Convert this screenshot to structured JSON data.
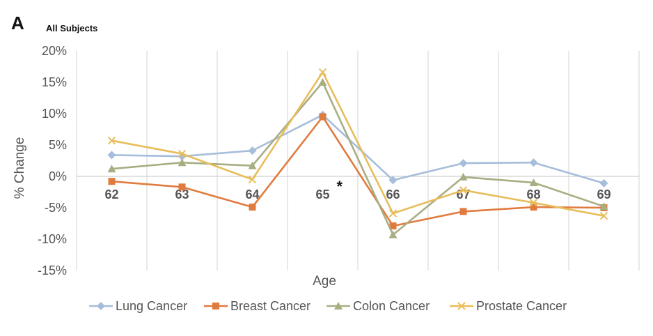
{
  "figure": {
    "panel_letter": "A",
    "subtitle": "All Subjects"
  },
  "colors": {
    "lung": "#a6bddb",
    "breast": "#e07b3f",
    "colon": "#a8ae82",
    "prostate": "#e8bd5c",
    "grid": "#dddddd",
    "zero_line": "#d0d0d0"
  },
  "chart_data": {
    "type": "line",
    "title": "",
    "xlabel": "Age",
    "ylabel": "% Change",
    "categories": [
      "62",
      "63",
      "64",
      "65",
      "66",
      "67",
      "68",
      "69"
    ],
    "ylim": [
      -15,
      20
    ],
    "yticks": [
      -15,
      -10,
      -5,
      0,
      5,
      10,
      15,
      20
    ],
    "ytick_labels": [
      "-15%",
      "-10%",
      "-5%",
      "0%",
      "5%",
      "10%",
      "15%",
      "20%"
    ],
    "grid": "vertical",
    "legend_position": "bottom",
    "annotation": {
      "text": "*",
      "category": "65"
    },
    "series": [
      {
        "name": "Lung Cancer",
        "marker": "diamond",
        "color": "#a6bddb",
        "values": [
          3.4,
          3.2,
          4.1,
          9.8,
          -0.6,
          2.1,
          2.2,
          -1.1
        ]
      },
      {
        "name": "Breast Cancer",
        "marker": "square",
        "color": "#e07b3f",
        "values": [
          -0.8,
          -1.7,
          -4.9,
          9.5,
          -7.9,
          -5.6,
          -4.9,
          -5.0
        ]
      },
      {
        "name": "Colon Cancer",
        "marker": "triangle",
        "color": "#a8ae82",
        "values": [
          1.2,
          2.2,
          1.7,
          15.0,
          -9.3,
          -0.1,
          -1.0,
          -4.8
        ]
      },
      {
        "name": "Prostate Cancer",
        "marker": "x",
        "color": "#e8bd5c",
        "values": [
          5.7,
          3.6,
          -0.5,
          16.6,
          -5.9,
          -2.2,
          -4.2,
          -6.3
        ]
      }
    ]
  }
}
